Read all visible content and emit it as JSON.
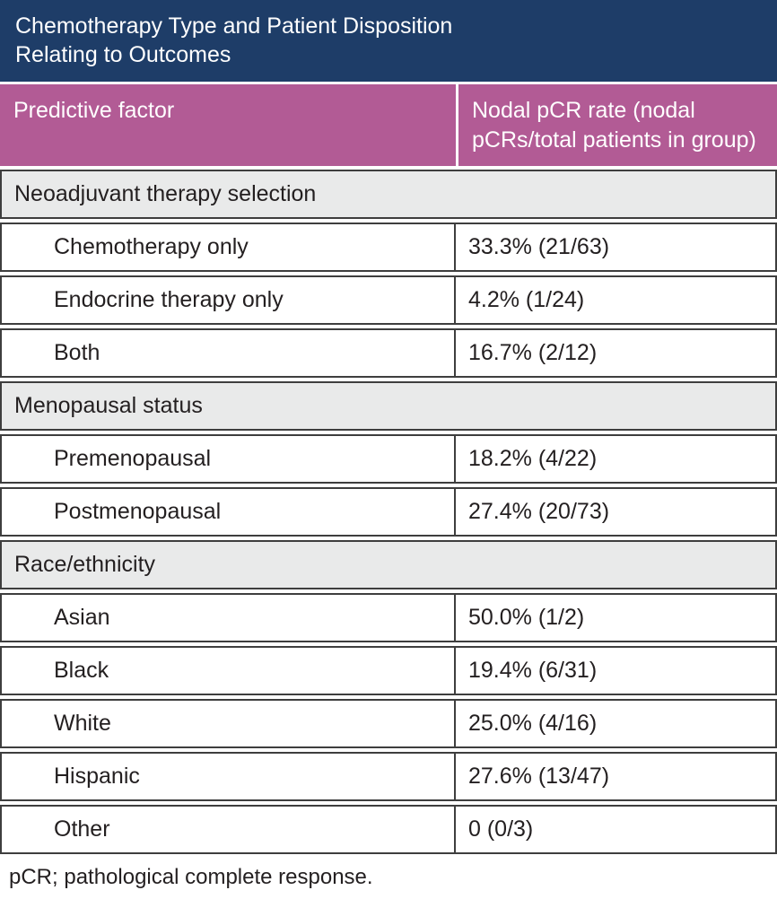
{
  "title_lines": [
    "Chemotherapy Type and Patient Disposition",
    "Relating to Outcomes"
  ],
  "footnote": "pCR; pathological complete response.",
  "colors": {
    "title_bg": "#1e3d68",
    "header_bg": "#b25b95",
    "section_bg": "#e9eaea",
    "border": "#3e3e3e",
    "text": "#231f20",
    "header_text": "#ffffff"
  },
  "chart_data": {
    "type": "table",
    "title": "Chemotherapy Type and Patient Disposition Relating to Outcomes",
    "columns": [
      "Predictive factor",
      "Nodal pCR rate (nodal pCRs/total patients in group)"
    ],
    "sections": [
      {
        "name": "Neoadjuvant therapy selection",
        "rows": [
          {
            "factor": "Chemotherapy only",
            "rate": "33.3% (21/63)",
            "pct": 33.3,
            "pcrs": 21,
            "total": 63
          },
          {
            "factor": "Endocrine therapy only",
            "rate": "4.2% (1/24)",
            "pct": 4.2,
            "pcrs": 1,
            "total": 24
          },
          {
            "factor": "Both",
            "rate": "16.7% (2/12)",
            "pct": 16.7,
            "pcrs": 2,
            "total": 12
          }
        ]
      },
      {
        "name": "Menopausal status",
        "rows": [
          {
            "factor": "Premenopausal",
            "rate": "18.2% (4/22)",
            "pct": 18.2,
            "pcrs": 4,
            "total": 22
          },
          {
            "factor": "Postmenopausal",
            "rate": "27.4% (20/73)",
            "pct": 27.4,
            "pcrs": 20,
            "total": 73
          }
        ]
      },
      {
        "name": "Race/ethnicity",
        "rows": [
          {
            "factor": "Asian",
            "rate": "50.0% (1/2)",
            "pct": 50.0,
            "pcrs": 1,
            "total": 2
          },
          {
            "factor": "Black",
            "rate": "19.4% (6/31)",
            "pct": 19.4,
            "pcrs": 6,
            "total": 31
          },
          {
            "factor": "White",
            "rate": "25.0% (4/16)",
            "pct": 25.0,
            "pcrs": 4,
            "total": 16
          },
          {
            "factor": "Hispanic",
            "rate": "27.6% (13/47)",
            "pct": 27.6,
            "pcrs": 13,
            "total": 47
          },
          {
            "factor": "Other",
            "rate": "0 (0/3)",
            "pct": 0,
            "pcrs": 0,
            "total": 3
          }
        ]
      }
    ],
    "footnote": "pCR; pathological complete response."
  }
}
